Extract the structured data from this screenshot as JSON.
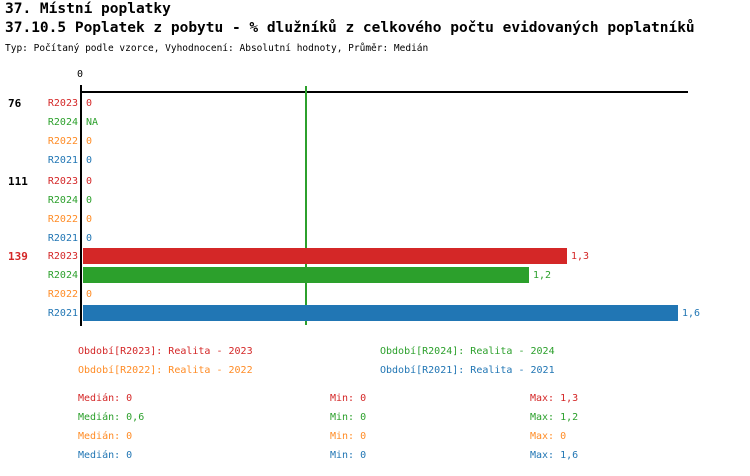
{
  "page": {
    "title": "37. Místní poplatky",
    "subtitle": "37.10.5 Poplatek z pobytu - % dlužníků z celkového počtu evidovaných poplatníků",
    "meta": "Typ: Počítaný podle vzorce, Vyhodnocení: Absolutní hodnoty, Průměr: Medián"
  },
  "colors": {
    "r2023": "#d42727",
    "r2024": "#2ca02c",
    "r2022": "#ff8c26",
    "r2021": "#2176b4",
    "axis": "#000000",
    "median_line": "#2ca02c",
    "highlight_group_label": "#d42727",
    "normal_group_label": "#000000"
  },
  "chart_data": {
    "type": "bar",
    "orientation": "horizontal",
    "x_axis": {
      "min": 0,
      "max": 1.6,
      "tick_label": "0",
      "median_line_value": 0.6,
      "grid": false
    },
    "series": [
      {
        "id": "R2023",
        "legend": "Období[R2023]: Realita - 2023",
        "color_key": "r2023"
      },
      {
        "id": "R2024",
        "legend": "Období[R2024]: Realita - 2024",
        "color_key": "r2024"
      },
      {
        "id": "R2022",
        "legend": "Období[R2022]: Realita - 2022",
        "color_key": "r2022"
      },
      {
        "id": "R2021",
        "legend": "Období[R2021]: Realita - 2021",
        "color_key": "r2021"
      }
    ],
    "groups": [
      {
        "label": "76",
        "highlighted": false,
        "rows": [
          {
            "series": "R2023",
            "display": "0",
            "value": 0
          },
          {
            "series": "R2024",
            "display": "NA",
            "value": null
          },
          {
            "series": "R2022",
            "display": "0",
            "value": 0
          },
          {
            "series": "R2021",
            "display": "0",
            "value": 0
          }
        ]
      },
      {
        "label": "111",
        "highlighted": false,
        "rows": [
          {
            "series": "R2023",
            "display": "0",
            "value": 0
          },
          {
            "series": "R2024",
            "display": "0",
            "value": 0
          },
          {
            "series": "R2022",
            "display": "0",
            "value": 0
          },
          {
            "series": "R2021",
            "display": "0",
            "value": 0
          }
        ]
      },
      {
        "label": "139",
        "highlighted": true,
        "rows": [
          {
            "series": "R2023",
            "display": "1,3",
            "value": 1.3
          },
          {
            "series": "R2024",
            "display": "1,2",
            "value": 1.2
          },
          {
            "series": "R2022",
            "display": "0",
            "value": 0
          },
          {
            "series": "R2021",
            "display": "1,6",
            "value": 1.6
          }
        ]
      }
    ],
    "stats": [
      {
        "series": "R2023",
        "median": "Medián: 0",
        "min": "Min: 0",
        "max": "Max: 1,3",
        "color_key": "r2023"
      },
      {
        "series": "R2024",
        "median": "Medián: 0,6",
        "min": "Min: 0",
        "max": "Max: 1,2",
        "color_key": "r2024"
      },
      {
        "series": "R2022",
        "median": "Medián: 0",
        "min": "Min: 0",
        "max": "Max: 0",
        "color_key": "r2022"
      },
      {
        "series": "R2021",
        "median": "Medián: 0",
        "min": "Min: 0",
        "max": "Max: 1,6",
        "color_key": "r2021"
      }
    ]
  }
}
